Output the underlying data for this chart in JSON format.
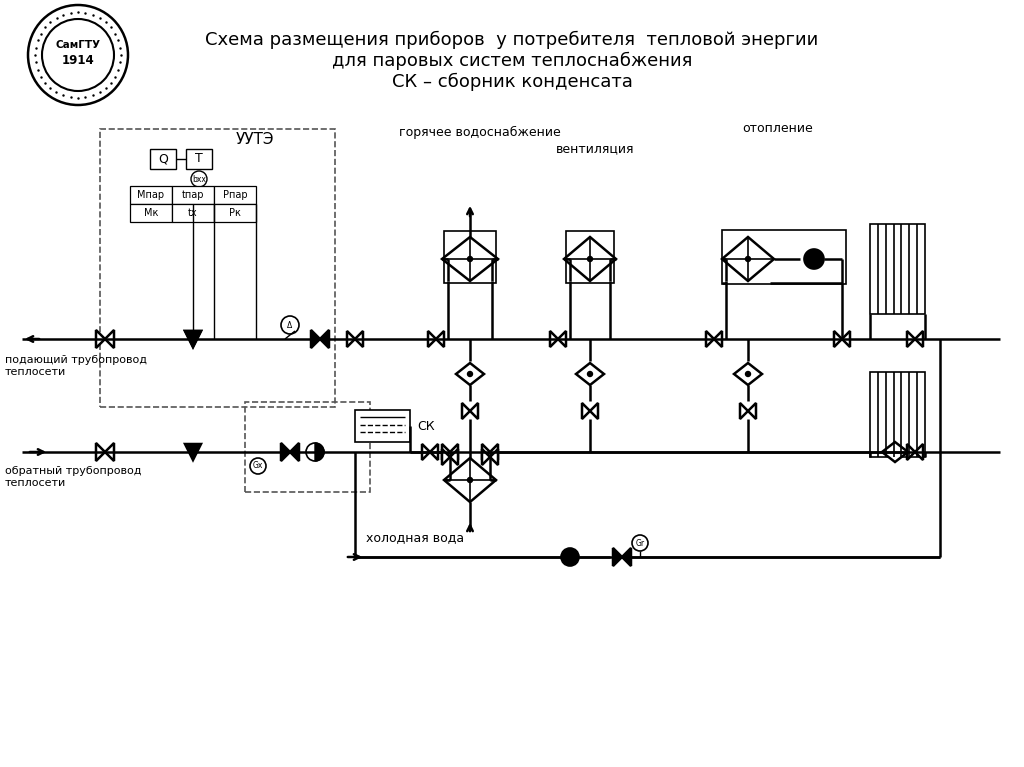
{
  "title_line1": "Схема размещения приборов  у потребителя  тепловой энергии",
  "title_line2": "для паровых систем теплоснабжения",
  "title_line3": "СК – сборник конденсата",
  "bg_color": "#ffffff",
  "label_supply": "подающий трубопровод\nтеплосети",
  "label_return": "обратный трубопровод\nтеплосети",
  "label_uute": "УУТЭ",
  "label_gvs": "горячее водоснабжение",
  "label_vent": "вентиляция",
  "label_heat": "отопление",
  "label_cold": "холодная вода",
  "label_sk": "СК",
  "table_row1": [
    "Мпар",
    "tпар",
    "Рпар"
  ],
  "table_row2": [
    "Мк",
    "tх",
    "Рк"
  ]
}
